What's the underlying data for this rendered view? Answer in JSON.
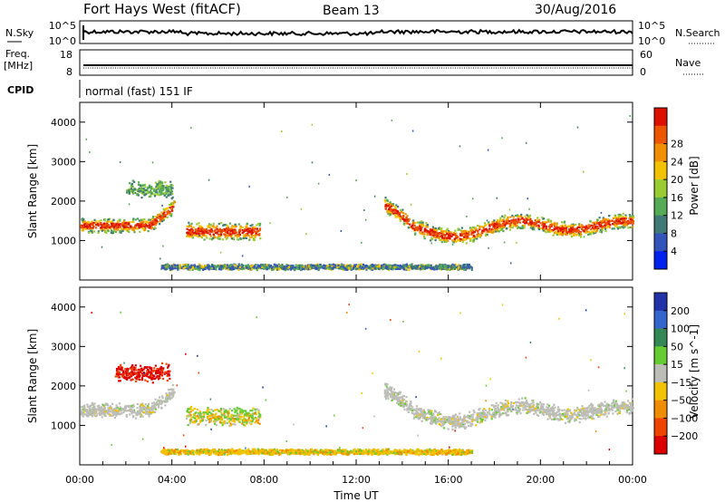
{
  "header": {
    "station": "Fort Hays West (fitACF)",
    "beam": "Beam 13",
    "date": "30/Aug/2016"
  },
  "top_panels": {
    "nsky_label": "N.Sky",
    "nsky_ticks": [
      "10^5",
      "10^0"
    ],
    "nsearch_label": "N.Search",
    "nsearch_ticks": [
      "10^5",
      "10^0"
    ],
    "freq_label": "Freq.",
    "freq_unit": "[MHz]",
    "freq_ticks": [
      "18",
      "8"
    ],
    "nave_label": "Nave",
    "nave_ticks": [
      "60",
      "0"
    ],
    "cpid_label": "CPID",
    "cpid_text": "normal (fast) 151 IF"
  },
  "chart_data": [
    {
      "type": "heatmap",
      "name": "power",
      "ylabel": "Slant Range [km]",
      "yticks": [
        "1000",
        "2000",
        "3000",
        "4000"
      ],
      "xlabel": "",
      "colorbar": {
        "label": "Power [dB]",
        "ticks": [
          "4",
          "8",
          "12",
          "16",
          "20",
          "24",
          "28"
        ],
        "colors": [
          "#0022ee",
          "#3355bb",
          "#3f7a76",
          "#55aa55",
          "#99cc33",
          "#f2c200",
          "#f09000",
          "#ee5500",
          "#dd1100"
        ]
      },
      "regions": [
        {
          "t0": 0.0,
          "t1": 4.1,
          "r_center": 1400,
          "r_halfwidth": 200,
          "value": "high"
        },
        {
          "t0": 2.0,
          "t1": 4.0,
          "r_center": 2300,
          "r_halfwidth": 250,
          "value": "mid"
        },
        {
          "t0": 4.6,
          "t1": 7.8,
          "r_center": 1250,
          "r_halfwidth": 250,
          "value": "high"
        },
        {
          "t0": 13.2,
          "t1": 24.0,
          "r_center": 1400,
          "r_halfwidth": 220,
          "value": "high"
        },
        {
          "t0": 3.5,
          "t1": 17.0,
          "r_center": 350,
          "r_halfwidth": 80,
          "value": "low"
        }
      ]
    },
    {
      "type": "heatmap",
      "name": "velocity",
      "ylabel": "Slant Range [km]",
      "yticks": [
        "1000",
        "2000",
        "3000",
        "4000"
      ],
      "xlabel": "Time UT",
      "xticks": [
        "00:00",
        "04:00",
        "08:00",
        "12:00",
        "16:00",
        "20:00",
        "00:00"
      ],
      "colorbar": {
        "label": "Velocity [m s^-1]",
        "ticks": [
          "200",
          "100",
          "50",
          "15",
          "-15",
          "-50",
          "-100",
          "-200"
        ],
        "colors": [
          "#2233aa",
          "#3366cc",
          "#338855",
          "#66cc33",
          "#bdbdb8",
          "#f2c200",
          "#f08c00",
          "#ee4400",
          "#dd0000"
        ]
      },
      "regions": [
        {
          "t0": 0.0,
          "t1": 4.1,
          "r_center": 1400,
          "r_halfwidth": 200,
          "value": "near_zero"
        },
        {
          "t0": 1.5,
          "t1": 3.9,
          "r_center": 2350,
          "r_halfwidth": 250,
          "value": "negative_high"
        },
        {
          "t0": 4.6,
          "t1": 7.8,
          "r_center": 1250,
          "r_halfwidth": 250,
          "value": "mixed"
        },
        {
          "t0": 13.2,
          "t1": 24.0,
          "r_center": 1400,
          "r_halfwidth": 220,
          "value": "near_zero"
        },
        {
          "t0": 3.5,
          "t1": 17.0,
          "r_center": 350,
          "r_halfwidth": 80,
          "value": "negative_low"
        }
      ]
    }
  ]
}
